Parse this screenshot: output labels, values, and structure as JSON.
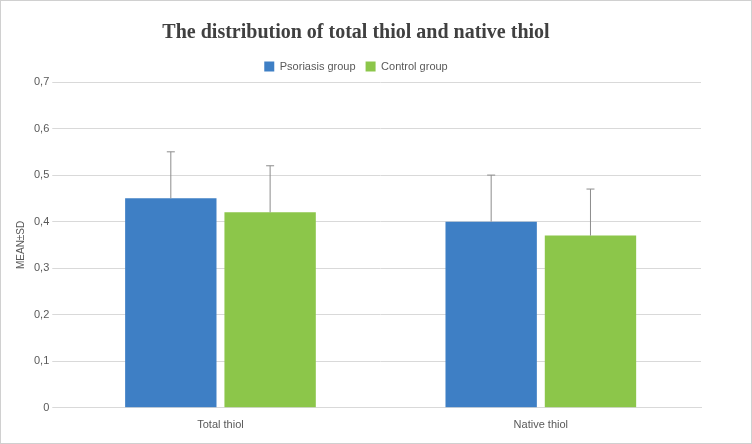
{
  "chart_data": {
    "type": "bar",
    "title": "The distribution of total thiol and native thiol",
    "y_label": "MEAN±SD",
    "categories": [
      "Total thiol",
      "Native thiol"
    ],
    "series": [
      {
        "name": "Psoriasis group",
        "color": "#3e7fc5",
        "values": [
          0.45,
          0.4
        ],
        "sd": [
          0.1,
          0.1
        ]
      },
      {
        "name": "Control group",
        "color": "#8cc64a",
        "values": [
          0.42,
          0.37
        ],
        "sd": [
          0.1,
          0.1
        ]
      }
    ],
    "ylim": [
      0,
      0.7
    ],
    "yticks": [
      0,
      {
        "value": 0.1,
        "label": "0,1"
      },
      {
        "value": 0.2,
        "label": "0,2"
      },
      {
        "value": 0.3,
        "label": "0,3"
      },
      {
        "value": 0.4,
        "label": "0,4"
      },
      {
        "value": 0.5,
        "label": "0,5"
      },
      {
        "value": 0.6,
        "label": "0,6"
      },
      {
        "value": 0.7,
        "label": "0,7"
      }
    ],
    "grid": true,
    "legend": "top"
  }
}
